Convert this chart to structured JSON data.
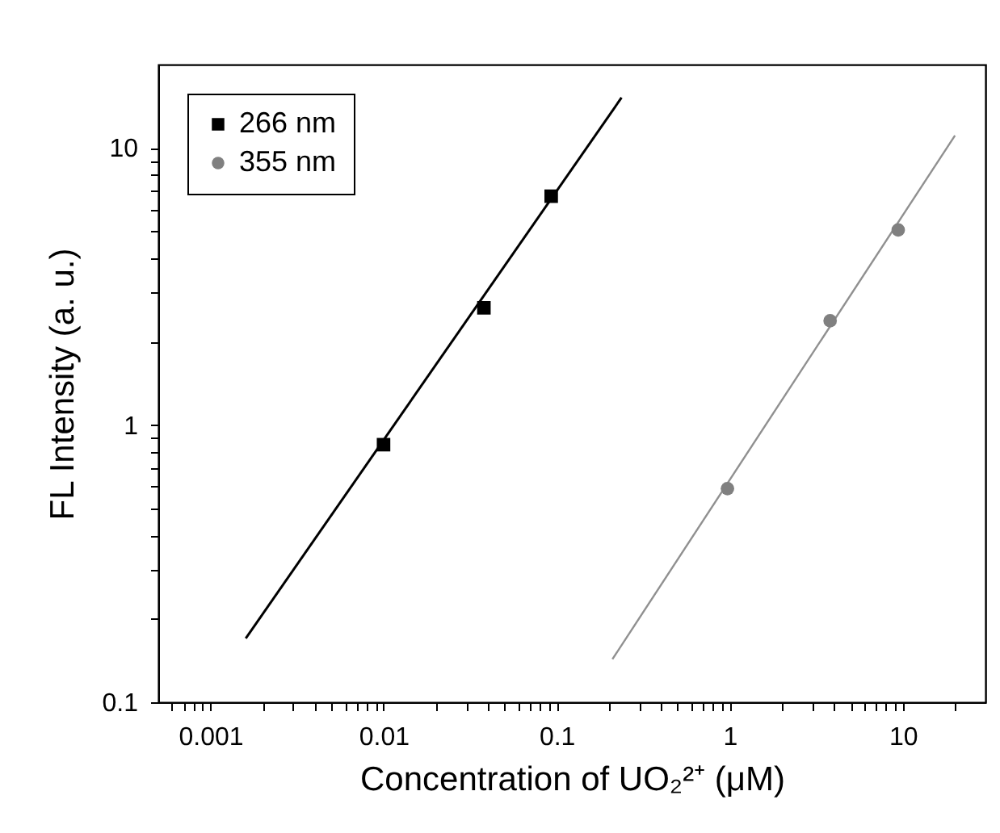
{
  "chart_data": {
    "type": "scatter",
    "xlabel": "Concentration of UO₂²⁺ (μM)",
    "ylabel": "FL Intensity (a. u.)",
    "log": "xy",
    "grid": false,
    "legend": "top left",
    "xlim": [
      0.0005,
      30
    ],
    "ylim": [
      0.1,
      20
    ],
    "xticks": [
      {
        "value": 0.0006,
        "label": null
      },
      {
        "value": 0.0007,
        "label": null
      },
      {
        "value": 0.0008,
        "label": null
      },
      {
        "value": 0.0009,
        "label": null
      },
      0.001,
      {
        "value": 0.002,
        "label": null
      },
      {
        "value": 0.003,
        "label": null
      },
      {
        "value": 0.004,
        "label": null
      },
      {
        "value": 0.005,
        "label": null
      },
      {
        "value": 0.006,
        "label": null
      },
      {
        "value": 0.007,
        "label": null
      },
      {
        "value": 0.008,
        "label": null
      },
      {
        "value": 0.009,
        "label": null
      },
      0.01,
      {
        "value": 0.02,
        "label": null
      },
      {
        "value": 0.03,
        "label": null
      },
      {
        "value": 0.04,
        "label": null
      },
      {
        "value": 0.05,
        "label": null
      },
      {
        "value": 0.06,
        "label": null
      },
      {
        "value": 0.07,
        "label": null
      },
      {
        "value": 0.08,
        "label": null
      },
      {
        "value": 0.09,
        "label": null
      },
      0.1,
      {
        "value": 0.2,
        "label": null
      },
      {
        "value": 0.3,
        "label": null
      },
      {
        "value": 0.4,
        "label": null
      },
      {
        "value": 0.5,
        "label": null
      },
      {
        "value": 0.6,
        "label": null
      },
      {
        "value": 0.7,
        "label": null
      },
      {
        "value": 0.8,
        "label": null
      },
      {
        "value": 0.9,
        "label": null
      },
      1,
      {
        "value": 2,
        "label": null
      },
      {
        "value": 3,
        "label": null
      },
      {
        "value": 4,
        "label": null
      },
      {
        "value": 5,
        "label": null
      },
      {
        "value": 6,
        "label": null
      },
      {
        "value": 7,
        "label": null
      },
      {
        "value": 8,
        "label": null
      },
      {
        "value": 9,
        "label": null
      },
      10,
      {
        "value": 20,
        "label": null
      }
    ],
    "yticks": [
      0.1,
      {
        "value": 0.2,
        "label": null
      },
      {
        "value": 0.3,
        "label": null
      },
      {
        "value": 0.4,
        "label": null
      },
      {
        "value": 0.5,
        "label": null
      },
      {
        "value": 0.6,
        "label": null
      },
      {
        "value": 0.7,
        "label": null
      },
      {
        "value": 0.8,
        "label": null
      },
      {
        "value": 0.9,
        "label": null
      },
      1,
      {
        "value": 2,
        "label": null
      },
      {
        "value": 3,
        "label": null
      },
      {
        "value": 4,
        "label": null
      },
      {
        "value": 5,
        "label": null
      },
      {
        "value": 6,
        "label": null
      },
      {
        "value": 7,
        "label": null
      },
      {
        "value": 8,
        "label": null
      },
      {
        "value": 9,
        "label": null
      },
      10
    ],
    "series": [
      {
        "name": "266 nm",
        "color": "#000000",
        "marker": "square",
        "x": [
          0.01,
          0.038,
          0.093
        ],
        "values": [
          0.85,
          2.65,
          6.7
        ]
      },
      {
        "name": "355 nm",
        "color": "#808080",
        "marker": "circle",
        "x": [
          0.97,
          3.8,
          9.4
        ],
        "values": [
          0.59,
          2.38,
          5.06
        ]
      },
      {
        "type": "line",
        "color": "#000000",
        "marker": "none",
        "line_style": "solid",
        "x": [
          0.0016,
          0.237
        ],
        "values": [
          0.17,
          15.2
        ]
      },
      {
        "type": "line",
        "color": "#909090",
        "marker": "none",
        "line_style": "solid",
        "x": [
          0.21,
          20
        ],
        "values": [
          0.143,
          11.1
        ]
      }
    ]
  }
}
